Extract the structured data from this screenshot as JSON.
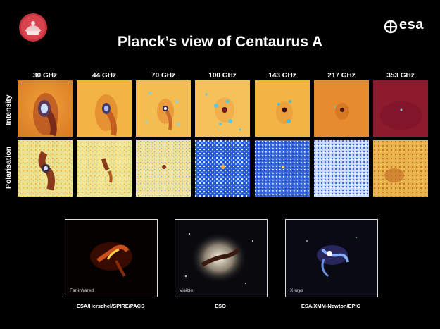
{
  "title": "Planck’s view of Centaurus A",
  "logo_esa": "esa",
  "frequencies": [
    "30 GHz",
    "44 GHz",
    "70 GHz",
    "100 GHz",
    "143 GHz",
    "217 GHz",
    "353 GHz"
  ],
  "row_labels": {
    "intensity": "Intensity",
    "polarisation": "Polarisation"
  },
  "photos": [
    {
      "label": "Far-infrared",
      "credit": "ESA/Herschel/SPIRE/PACS"
    },
    {
      "label": "Visible",
      "credit": "ESO"
    },
    {
      "label": "X-rays",
      "credit": "ESA/XMM-Newton/EPIC"
    }
  ],
  "colors": {
    "background": "#000000",
    "intensity_orange": "#f2a93b",
    "polar_blue": "#2b5fd9",
    "polar_yellow": "#efe08a",
    "maroon_353": "#8e1a2d"
  }
}
